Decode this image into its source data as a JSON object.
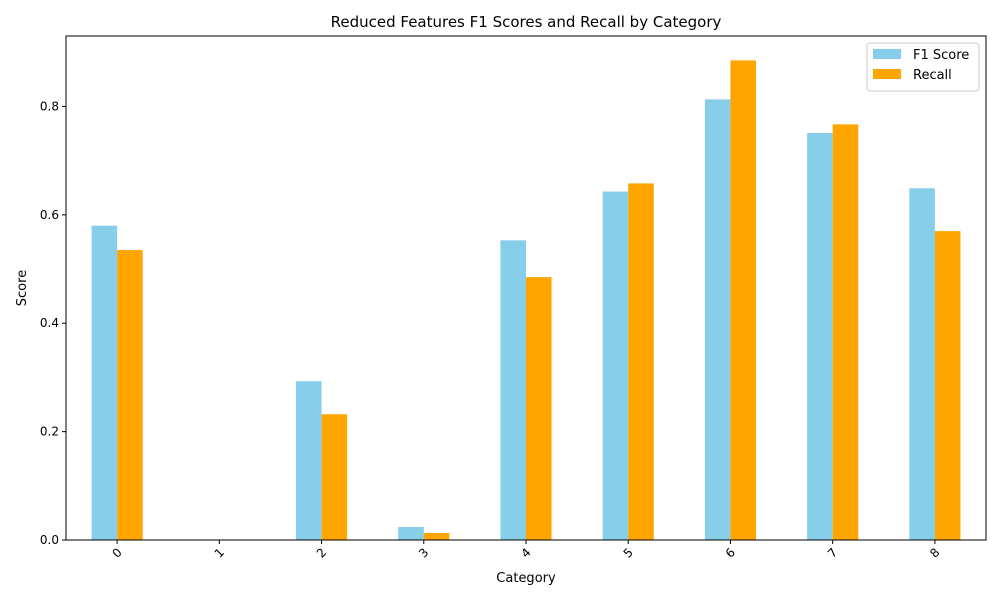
{
  "chart_data": {
    "type": "bar",
    "title": "Reduced Features F1 Scores and Recall by Category",
    "xlabel": "Category",
    "ylabel": "Score",
    "categories": [
      "0",
      "1",
      "2",
      "3",
      "4",
      "5",
      "6",
      "7",
      "8"
    ],
    "ylim": [
      0,
      0.93
    ],
    "yticks": [
      "0.0",
      "0.2",
      "0.4",
      "0.6",
      "0.8"
    ],
    "ytick_values": [
      0,
      0.2,
      0.4,
      0.6,
      0.8
    ],
    "series": [
      {
        "name": "F1 Score",
        "color": "#87ceeb",
        "values": [
          0.58,
          0.0,
          0.293,
          0.024,
          0.553,
          0.643,
          0.813,
          0.751,
          0.649
        ]
      },
      {
        "name": "Recall",
        "color": "#ffa500",
        "values": [
          0.535,
          0.0,
          0.232,
          0.013,
          0.485,
          0.658,
          0.885,
          0.767,
          0.57
        ]
      }
    ],
    "grid": false,
    "legend_position": "top-right",
    "xtick_rotation": 45
  }
}
